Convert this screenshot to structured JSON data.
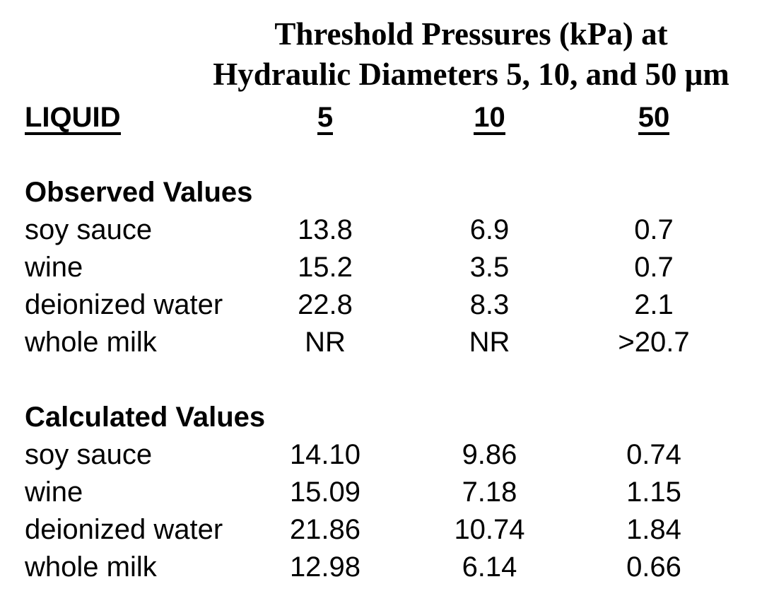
{
  "page": {
    "background_color": "#ffffff",
    "text_color": "#000000"
  },
  "title": {
    "line1": "Threshold Pressures (kPa) at",
    "line2": "Hydraulic Diameters 5, 10, and 50 μm"
  },
  "table": {
    "columns": {
      "liquid": "LIQUID",
      "d5": "5",
      "d10": "10",
      "d50": "50"
    },
    "sections": [
      {
        "label": "Observed Values",
        "rows": [
          {
            "liquid": "soy sauce",
            "d5": "13.8",
            "d10": "6.9",
            "d50": "0.7"
          },
          {
            "liquid": "wine",
            "d5": "15.2",
            "d10": "3.5",
            "d50": "0.7"
          },
          {
            "liquid": "deionized water",
            "d5": "22.8",
            "d10": "8.3",
            "d50": "2.1"
          },
          {
            "liquid": "whole milk",
            "d5": "NR",
            "d10": "NR",
            "d50": ">20.7"
          }
        ]
      },
      {
        "label": "Calculated Values",
        "rows": [
          {
            "liquid": "soy sauce",
            "d5": "14.10",
            "d10": "9.86",
            "d50": "0.74"
          },
          {
            "liquid": "wine",
            "d5": "15.09",
            "d10": "7.18",
            "d50": "1.15"
          },
          {
            "liquid": "deionized water",
            "d5": "21.86",
            "d10": "10.74",
            "d50": "1.84"
          },
          {
            "liquid": "whole milk",
            "d5": "12.98",
            "d10": "6.14",
            "d50": "0.66"
          }
        ]
      }
    ]
  },
  "chart_data": {
    "type": "table",
    "title": "Threshold Pressures (kPa) at Hydraulic Diameters 5, 10, and 50 μm",
    "unit": "kPa",
    "columns": [
      "LIQUID",
      "5",
      "10",
      "50"
    ],
    "sections": [
      {
        "name": "Observed Values",
        "rows": [
          [
            "soy sauce",
            13.8,
            6.9,
            0.7
          ],
          [
            "wine",
            15.2,
            3.5,
            0.7
          ],
          [
            "deionized water",
            22.8,
            8.3,
            2.1
          ],
          [
            "whole milk",
            "NR",
            "NR",
            ">20.7"
          ]
        ]
      },
      {
        "name": "Calculated Values",
        "rows": [
          [
            "soy sauce",
            14.1,
            9.86,
            0.74
          ],
          [
            "wine",
            15.09,
            7.18,
            1.15
          ],
          [
            "deionized water",
            21.86,
            10.74,
            1.84
          ],
          [
            "whole milk",
            12.98,
            6.14,
            0.66
          ]
        ]
      }
    ]
  }
}
